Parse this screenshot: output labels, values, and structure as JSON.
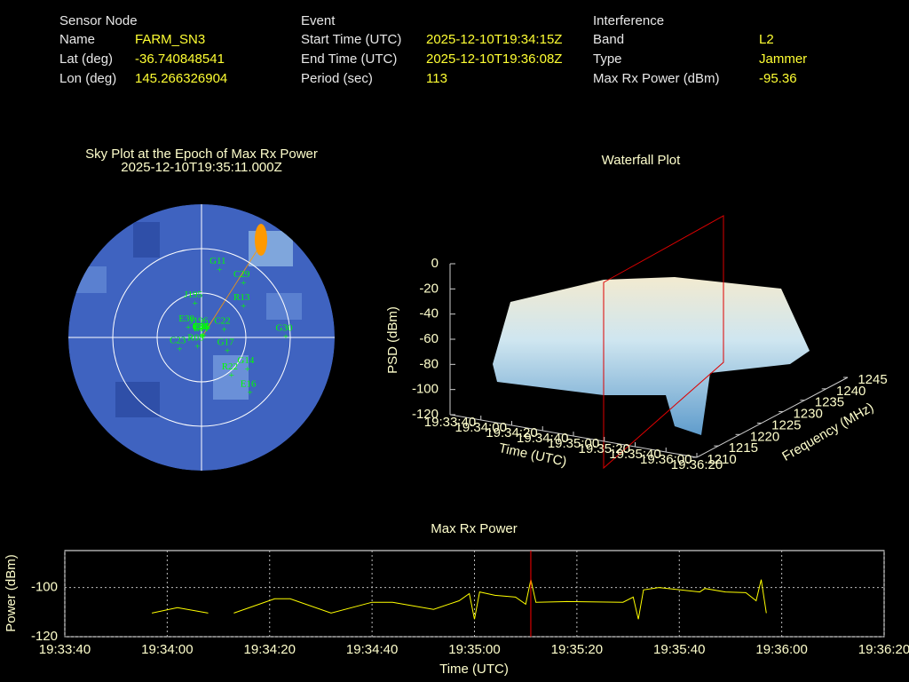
{
  "info": {
    "sensor": {
      "title": "Sensor Node",
      "rows": [
        [
          "Name",
          "FARM_SN3"
        ],
        [
          "Lat (deg)",
          -36.740848541
        ],
        [
          "Lon (deg)",
          145.266326904
        ]
      ]
    },
    "event": {
      "title": "Event",
      "rows": [
        [
          "Start Time (UTC)",
          "2025-12-10T19:34:15Z"
        ],
        [
          "End Time (UTC)",
          "2025-12-10T19:36:08Z"
        ],
        [
          "Period (sec)",
          113
        ]
      ]
    },
    "interference": {
      "title": "Interference",
      "rows": [
        [
          "Band",
          "L2"
        ],
        [
          "Type",
          "Jammer"
        ],
        [
          "Max Rx Power (dBm)",
          -95.36
        ]
      ]
    }
  },
  "chart_data": [
    {
      "type": "polar",
      "title": "Sky Plot at the Epoch of Max Rx Power",
      "subtitle": "2025-12-10T19:35:11.000Z",
      "rlim": [
        90,
        0
      ],
      "rticks": [
        0,
        30,
        60
      ],
      "color": "#00ff00",
      "satellites": [
        {
          "name": "J196",
          "azimuth": 352,
          "elevation": 5
        },
        {
          "name": "E34",
          "azimuth": 22,
          "elevation": 1
        },
        {
          "name": "C05",
          "azimuth": 29,
          "elevation": 1
        },
        {
          "name": "C46",
          "azimuth": 41,
          "elevation": 1
        },
        {
          "name": "J195",
          "azimuth": 349,
          "elevation": 23
        },
        {
          "name": "E36",
          "azimuth": 61,
          "elevation": 2
        },
        {
          "name": "R13",
          "azimuth": 54,
          "elevation": 35
        },
        {
          "name": "C22",
          "azimuth": 73,
          "elevation": 16
        },
        {
          "name": "G11",
          "azimuth": 15,
          "elevation": 47
        },
        {
          "name": "C29",
          "azimuth": 38,
          "elevation": 46
        },
        {
          "name": "E30",
          "azimuth": 306,
          "elevation": 11
        },
        {
          "name": "C23",
          "azimuth": 241,
          "elevation": 17
        },
        {
          "name": "R22",
          "azimuth": 142,
          "elevation": 33
        },
        {
          "name": "E11",
          "azimuth": 108,
          "elevation": 1
        },
        {
          "name": "G17",
          "azimuth": 119,
          "elevation": 20
        },
        {
          "name": "G14",
          "azimuth": 125,
          "elevation": 38
        },
        {
          "name": "E16",
          "azimuth": 139,
          "elevation": 50
        },
        {
          "name": "R05",
          "azimuth": 203,
          "elevation": 7
        },
        {
          "name": "G30",
          "azimuth": 90,
          "elevation": 57
        }
      ]
    },
    {
      "type": "surface3d",
      "title": "Waterfall Plot",
      "zlabel": "PSD (dBm)",
      "xlabel": "Time (UTC)",
      "ylabel": "Frequency (MHz)",
      "zlim": [
        -120,
        0
      ],
      "zticks": [
        0,
        -20,
        -40,
        -60,
        -80,
        -100,
        -120
      ],
      "xlim": [
        "19:33:40",
        "19:36:20"
      ],
      "xticks": [
        "19:33:40",
        "19:34:00",
        "19:34:20",
        "19:34:40",
        "19:35:00",
        "19:35:20",
        "19:35:40",
        "19:36:00",
        "19:36:20"
      ],
      "ylim": [
        1210,
        1245
      ],
      "yticks": [
        1210,
        1215,
        1220,
        1225,
        1230,
        1235,
        1240,
        1245
      ]
    },
    {
      "type": "line",
      "title": "Max Rx Power",
      "xlabel": "Time (UTC)",
      "ylabel": "Power (dBm)",
      "color": "#ffff00",
      "grid": true,
      "marker_x": "19:35:11",
      "marker_color": "#ff0000",
      "xlim": [
        "19:33:40",
        "19:36:20"
      ],
      "xticks": [
        "19:33:40",
        "19:34:00",
        "19:34:20",
        "19:34:40",
        "19:35:00",
        "19:35:20",
        "19:35:40",
        "19:36:00",
        "19:36:20"
      ],
      "ylim": [
        -120,
        -85
      ],
      "yticks": [
        -120,
        -100
      ],
      "x": [
        "19:33:57",
        "19:34:02",
        "19:34:08",
        "19:34:10",
        "19:34:13",
        "19:34:21",
        "19:34:24",
        "19:34:32",
        "19:34:40",
        "19:34:44",
        "19:34:52",
        "19:34:57",
        "19:34:59",
        "19:35:00",
        "19:35:01",
        "19:35:04",
        "19:35:08",
        "19:35:10",
        "19:35:11",
        "19:35:12",
        "19:35:18",
        "19:35:29",
        "19:35:31",
        "19:35:32",
        "19:35:33",
        "19:35:36",
        "19:35:44",
        "19:35:45",
        "19:35:49",
        "19:35:53",
        "19:35:55",
        "19:35:56",
        "19:35:57"
      ],
      "values": [
        -110.4,
        -108.2,
        -110.4,
        null,
        -110.4,
        -104.6,
        -104.6,
        -110.4,
        -106,
        -106,
        -108.9,
        -105.4,
        -102.5,
        -112.9,
        -101.8,
        -103.2,
        -103.9,
        -106.8,
        -96.8,
        -106,
        -105.7,
        -106,
        -103.9,
        -112.9,
        -101,
        -100,
        -101.8,
        -100.4,
        -101.8,
        -102.1,
        -105.4,
        -96.8,
        -110.4
      ]
    }
  ]
}
